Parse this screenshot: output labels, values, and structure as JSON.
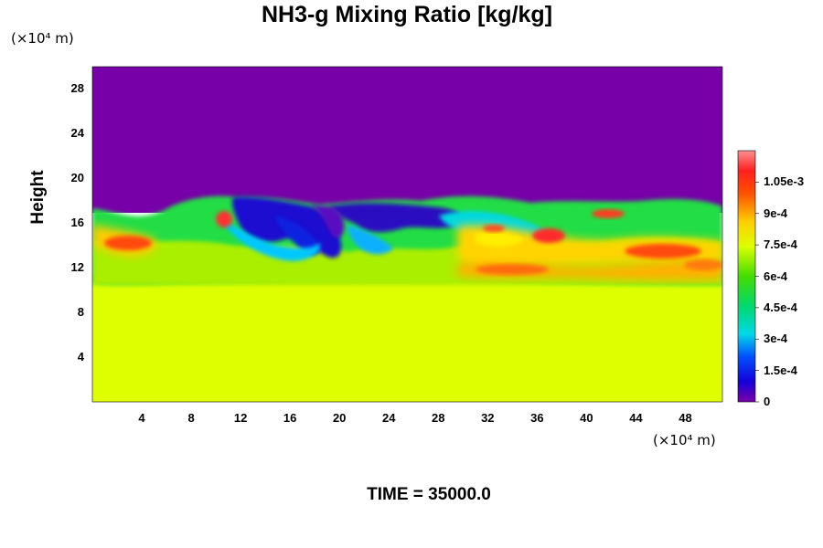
{
  "chart_data": {
    "type": "heatmap",
    "title": "NH3-g Mixing Ratio [kg/kg]",
    "ylabel": "Height",
    "x_unit": "(×10⁴ m)",
    "y_unit": "(×10⁴ m)",
    "x_ticks": [
      4,
      8,
      12,
      16,
      20,
      24,
      28,
      32,
      36,
      40,
      44,
      48
    ],
    "y_ticks": [
      4,
      8,
      12,
      16,
      20,
      24,
      28
    ],
    "xlim": [
      0,
      51
    ],
    "ylim": [
      0,
      30
    ],
    "colorbar": {
      "labels": [
        "0",
        "1.5e-4",
        "3e-4",
        "4.5e-4",
        "6e-4",
        "7.5e-4",
        "9e-4",
        "1.05e-3"
      ],
      "values": [
        0,
        0.00015,
        0.0003,
        0.00045,
        0.0006,
        0.00075,
        0.0009,
        0.00105
      ],
      "max": 0.0012
    },
    "fields": {
      "background_upper_value": 0,
      "background_lower_value": 0.00077,
      "mixing_layer_bottom_y": 11,
      "mixing_layer_top_y": 18
    },
    "footer": "TIME = 35000.0"
  }
}
